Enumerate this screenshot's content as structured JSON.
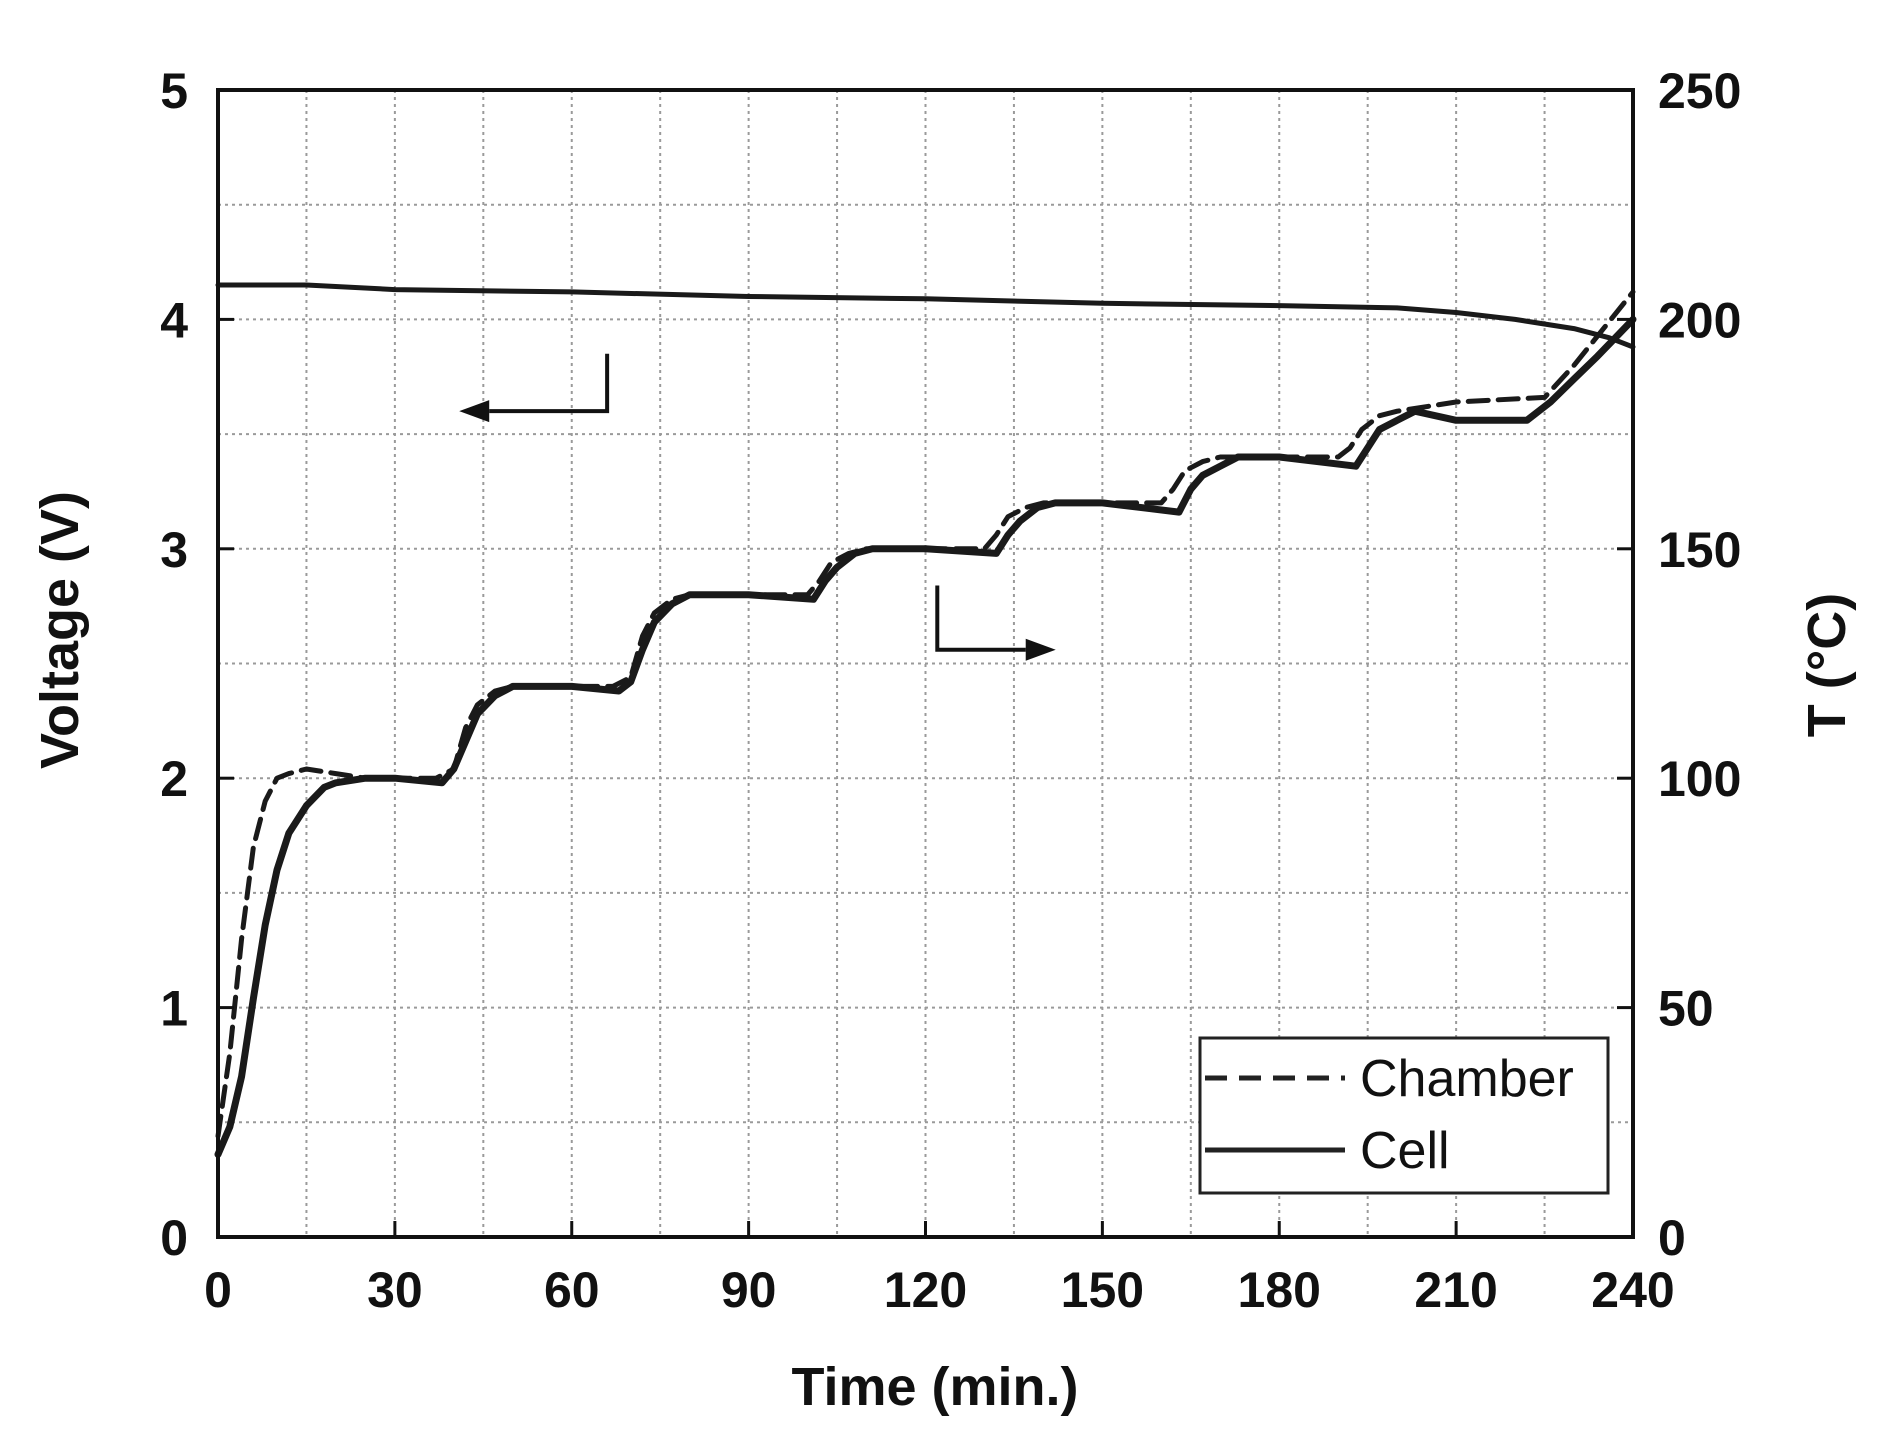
{
  "chart_data": {
    "type": "line",
    "xlabel": "Time (min.)",
    "ylabel_left": "Voltage (V)",
    "ylabel_right": "T (°C)",
    "x_range": [
      0,
      240
    ],
    "x_ticks": [
      0,
      30,
      60,
      90,
      120,
      150,
      180,
      210,
      240
    ],
    "x_minor_step": 15,
    "y_left_range": [
      0,
      5
    ],
    "y_left_ticks": [
      0,
      1,
      2,
      3,
      4,
      5
    ],
    "y_right_range": [
      0,
      250
    ],
    "y_right_ticks": [
      0,
      50,
      100,
      150,
      200,
      250
    ],
    "y_minor_step_left": 0.5,
    "grid": true,
    "legend": {
      "position": "bottom-right",
      "entries": [
        {
          "name": "Chamber",
          "style": "dashed"
        },
        {
          "name": "Cell",
          "style": "solid"
        }
      ]
    },
    "annotations": [
      {
        "label": "arrow-to-left-axis",
        "refers_to": "voltage curve",
        "direction": "left"
      },
      {
        "label": "arrow-to-right-axis",
        "refers_to": "temperature curves",
        "direction": "right"
      }
    ],
    "series": [
      {
        "name": "Voltage",
        "axis": "left",
        "style": "solid",
        "x": [
          0,
          15,
          30,
          60,
          90,
          120,
          150,
          180,
          200,
          210,
          220,
          230,
          236,
          240
        ],
        "y": [
          4.15,
          4.15,
          4.13,
          4.12,
          4.1,
          4.09,
          4.07,
          4.06,
          4.05,
          4.03,
          4.0,
          3.96,
          3.92,
          3.88
        ]
      },
      {
        "name": "Chamber",
        "axis": "right",
        "style": "dashed",
        "x": [
          0,
          2,
          4,
          6,
          8,
          10,
          12,
          15,
          20,
          25,
          30,
          37,
          40,
          42,
          44,
          47,
          50,
          55,
          60,
          67,
          70,
          72,
          74,
          77,
          80,
          85,
          90,
          100,
          102,
          104,
          107,
          110,
          120,
          130,
          132,
          134,
          137,
          140,
          150,
          160,
          162,
          164,
          167,
          170,
          180,
          190,
          192,
          194,
          197,
          200,
          210,
          225,
          230,
          235,
          240
        ],
        "y": [
          22,
          40,
          65,
          85,
          95,
          100,
          101,
          102,
          101,
          100,
          100,
          100,
          102,
          111,
          116,
          119,
          120,
          120,
          120,
          120,
          122,
          131,
          136,
          139,
          140,
          140,
          140,
          140,
          143,
          147,
          149,
          150,
          150,
          150,
          153,
          157,
          159,
          160,
          160,
          160,
          163,
          167,
          169,
          170,
          170,
          170,
          172,
          176,
          179,
          180,
          182,
          183,
          190,
          198,
          206
        ]
      },
      {
        "name": "Cell",
        "axis": "right",
        "style": "solid",
        "x": [
          0,
          2,
          4,
          6,
          8,
          10,
          12,
          15,
          18,
          20,
          25,
          30,
          38,
          40,
          42,
          44,
          47,
          50,
          55,
          60,
          68,
          70,
          72,
          74,
          77,
          80,
          85,
          90,
          101,
          103,
          105,
          108,
          111,
          120,
          132,
          134,
          136,
          139,
          142,
          150,
          163,
          165,
          167,
          170,
          173,
          180,
          193,
          195,
          197,
          200,
          203,
          210,
          222,
          226,
          230,
          234,
          237,
          240
        ],
        "y": [
          18,
          24,
          35,
          52,
          68,
          80,
          88,
          94,
          98,
          99,
          100,
          100,
          99,
          102,
          108,
          114,
          118,
          120,
          120,
          120,
          119,
          121,
          128,
          134,
          138,
          140,
          140,
          140,
          139,
          143,
          146,
          149,
          150,
          150,
          149,
          153,
          156,
          159,
          160,
          160,
          158,
          163,
          166,
          168,
          170,
          170,
          168,
          172,
          176,
          178,
          180,
          178,
          178,
          182,
          187,
          192,
          196,
          200
        ]
      }
    ]
  },
  "legend": {
    "chamber_label": "Chamber",
    "cell_label": "Cell"
  },
  "axes": {
    "xlabel": "Time (min.)",
    "ylabel_left": "Voltage (V)",
    "ylabel_right": "T (°C)"
  }
}
